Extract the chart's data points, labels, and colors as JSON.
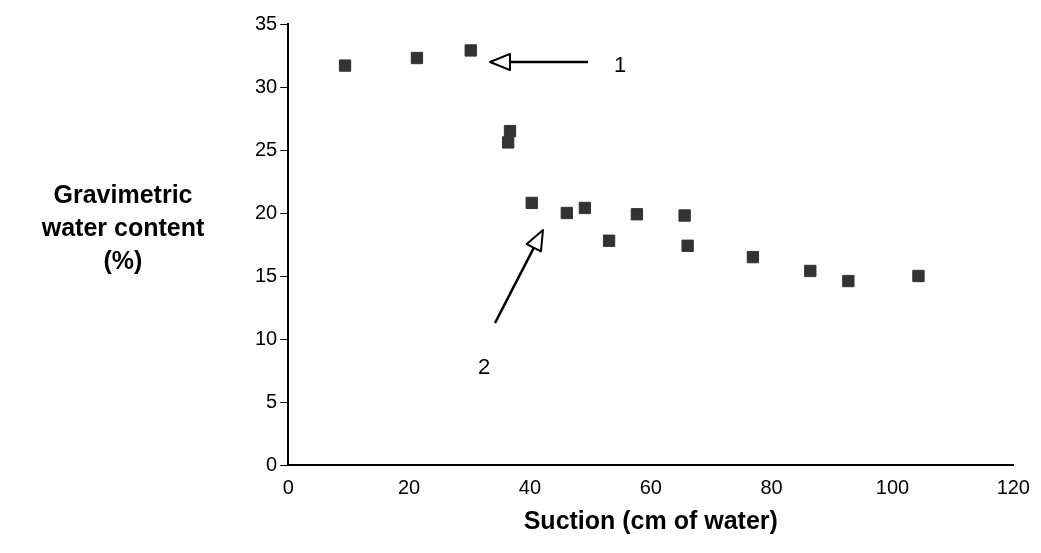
{
  "chart_data": {
    "type": "scatter",
    "xlabel": "Suction (cm of water)",
    "ylabel": "Gravimetric\nwater content\n(%)",
    "x": [
      9.4,
      21.3,
      30.2,
      36.7,
      36.4,
      40.3,
      46.1,
      49.1,
      53.1,
      57.7,
      65.6,
      66.1,
      76.9,
      86.4,
      92.7,
      104.3
    ],
    "values": [
      31.7,
      32.3,
      32.9,
      26.5,
      25.6,
      20.8,
      20.0,
      20.4,
      17.8,
      19.9,
      19.8,
      17.4,
      16.5,
      15.4,
      14.6,
      15.0
    ],
    "color": "#333333",
    "marker": "square",
    "xlim": [
      0,
      120
    ],
    "xticks": [
      0,
      20,
      40,
      60,
      80,
      100,
      120
    ],
    "ylim": [
      0,
      35
    ],
    "yticks": [
      0,
      5,
      10,
      15,
      20,
      25,
      30,
      35
    ],
    "grid": false,
    "legend": false,
    "annotations": [
      "1",
      "2"
    ]
  }
}
